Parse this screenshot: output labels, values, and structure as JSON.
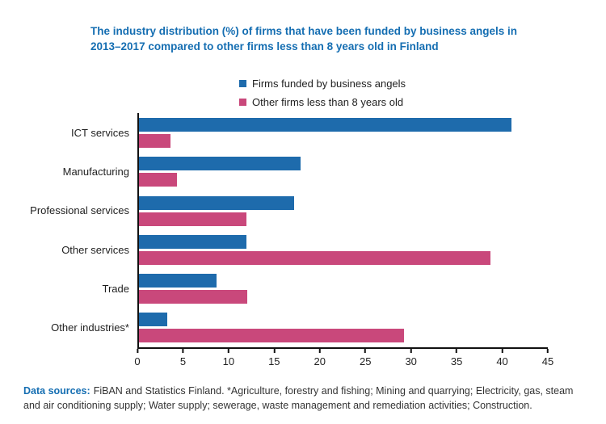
{
  "title": {
    "line1": "The industry distribution (%) of firms that have been funded by business angels in",
    "line2": "2013–2017 compared to other firms less than 8 years old in Finland"
  },
  "legend": {
    "items": [
      {
        "label": "Firms funded by business angels",
        "color": "#1e6bac"
      },
      {
        "label": "Other firms less than 8 years old",
        "color": "#c9487b"
      }
    ]
  },
  "chart_data": {
    "type": "bar",
    "orientation": "horizontal",
    "title": "The industry distribution (%) of firms that have been funded by business angels in 2013–2017 compared to other firms less than 8 years old in Finland",
    "categories": [
      "ICT services",
      "Manufacturing",
      "Professional services",
      "Other services",
      "Trade",
      "Other industries*"
    ],
    "series": [
      {
        "name": "Firms funded by business angels",
        "color": "#1e6bac",
        "values": [
          41,
          17.8,
          17.1,
          11.8,
          8.5,
          3.1
        ]
      },
      {
        "name": "Other firms less than 8 years old",
        "color": "#c9487b",
        "values": [
          3.5,
          4.2,
          11.8,
          38.7,
          11.9,
          29.2
        ]
      }
    ],
    "xlabel": "",
    "ylabel": "",
    "xlim": [
      0,
      45
    ],
    "xticks": [
      0,
      5,
      10,
      15,
      20,
      25,
      30,
      35,
      40,
      45
    ],
    "grid": false,
    "legend_position": "top-center"
  },
  "footer": {
    "label": "Data sources:",
    "text": "FiBAN and Statistics Finland. *Agriculture, forestry and fishing; Mining and quarrying; Electricity, gas, steam and air conditioning supply; Water supply; sewerage, waste management and remediation activities; Construction."
  },
  "colors": {
    "title_blue": "#156eb2",
    "angel_bar": "#1e6bac",
    "other_bar": "#c9487b",
    "axis": "#111111",
    "text": "#1f1f1f"
  }
}
